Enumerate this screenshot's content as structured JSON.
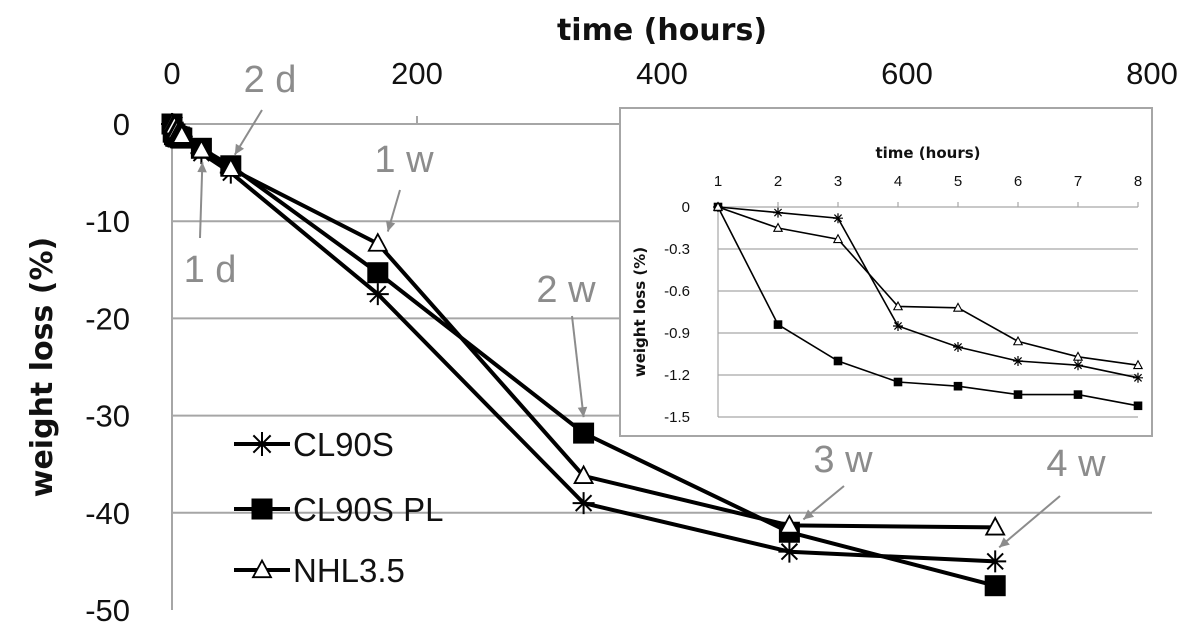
{
  "chart_data": [
    {
      "type": "line",
      "xlabel": "time (hours)",
      "ylabel": "weight loss (%)",
      "xlim": [
        0,
        800
      ],
      "ylim": [
        -50,
        0
      ],
      "x_ticks": [
        "0",
        "200",
        "400",
        "600",
        "800"
      ],
      "y_ticks": [
        "0",
        "-10",
        "-20",
        "-30",
        "-40",
        "-50"
      ],
      "grid": "horizontal",
      "legend_position": "bottom-left",
      "series": [
        {
          "name": "CL90S",
          "marker": "star",
          "x": [
            0,
            1,
            2,
            3,
            4,
            5,
            6,
            7,
            8,
            24,
            48,
            168,
            336,
            504,
            672
          ],
          "y": [
            0,
            -0.04,
            -0.08,
            -0.85,
            -1.0,
            -1.1,
            -1.13,
            -1.22,
            -1.3,
            -3.0,
            -5.0,
            -17.5,
            -39.0,
            -44.0,
            -45.0
          ]
        },
        {
          "name": "CL90S PL",
          "marker": "square",
          "x": [
            0,
            1,
            2,
            3,
            4,
            5,
            6,
            7,
            8,
            24,
            48,
            168,
            336,
            504,
            672
          ],
          "y": [
            0,
            -0.84,
            -1.1,
            -1.25,
            -1.28,
            -1.34,
            -1.34,
            -1.42,
            -1.45,
            -2.5,
            -4.3,
            -15.3,
            -31.8,
            -42.0,
            -47.5
          ]
        },
        {
          "name": "NHL3.5",
          "marker": "triangle",
          "x": [
            0,
            1,
            2,
            3,
            4,
            5,
            6,
            7,
            8,
            24,
            48,
            168,
            336,
            504,
            672
          ],
          "y": [
            0,
            -0.15,
            -0.23,
            -0.71,
            -0.72,
            -0.96,
            -1.07,
            -1.13,
            -1.2,
            -2.7,
            -4.6,
            -12.3,
            -36.2,
            -41.3,
            -41.5
          ]
        }
      ],
      "annotations": [
        {
          "label": "1 d",
          "x": 24
        },
        {
          "label": "2 d",
          "x": 48
        },
        {
          "label": "1 w",
          "x": 168
        },
        {
          "label": "2 w",
          "x": 336
        },
        {
          "label": "3 w",
          "x": 504
        },
        {
          "label": "4 w",
          "x": 672
        }
      ]
    },
    {
      "type": "line",
      "xlabel": "time (hours)",
      "ylabel": "weight loss (%)",
      "xlim": [
        1,
        8
      ],
      "ylim": [
        -1.5,
        0
      ],
      "x_ticks": [
        "1",
        "2",
        "3",
        "4",
        "5",
        "6",
        "7",
        "8"
      ],
      "y_ticks": [
        "0",
        "-0.3",
        "-0.6",
        "-0.9",
        "-1.2",
        "-1.5"
      ],
      "grid": "horizontal",
      "series": [
        {
          "name": "CL90S",
          "marker": "star",
          "x": [
            1,
            2,
            3,
            4,
            5,
            6,
            7,
            8
          ],
          "y": [
            0,
            -0.04,
            -0.08,
            -0.85,
            -1.0,
            -1.1,
            -1.13,
            -1.22
          ]
        },
        {
          "name": "CL90S PL",
          "marker": "square",
          "x": [
            1,
            2,
            3,
            4,
            5,
            6,
            7,
            8
          ],
          "y": [
            0,
            -0.84,
            -1.1,
            -1.25,
            -1.28,
            -1.34,
            -1.34,
            -1.42
          ]
        },
        {
          "name": "NHL3.5",
          "marker": "triangle",
          "x": [
            1,
            2,
            3,
            4,
            5,
            6,
            7,
            8
          ],
          "y": [
            0,
            -0.15,
            -0.23,
            -0.71,
            -0.72,
            -0.96,
            -1.07,
            -1.13
          ]
        }
      ]
    }
  ]
}
